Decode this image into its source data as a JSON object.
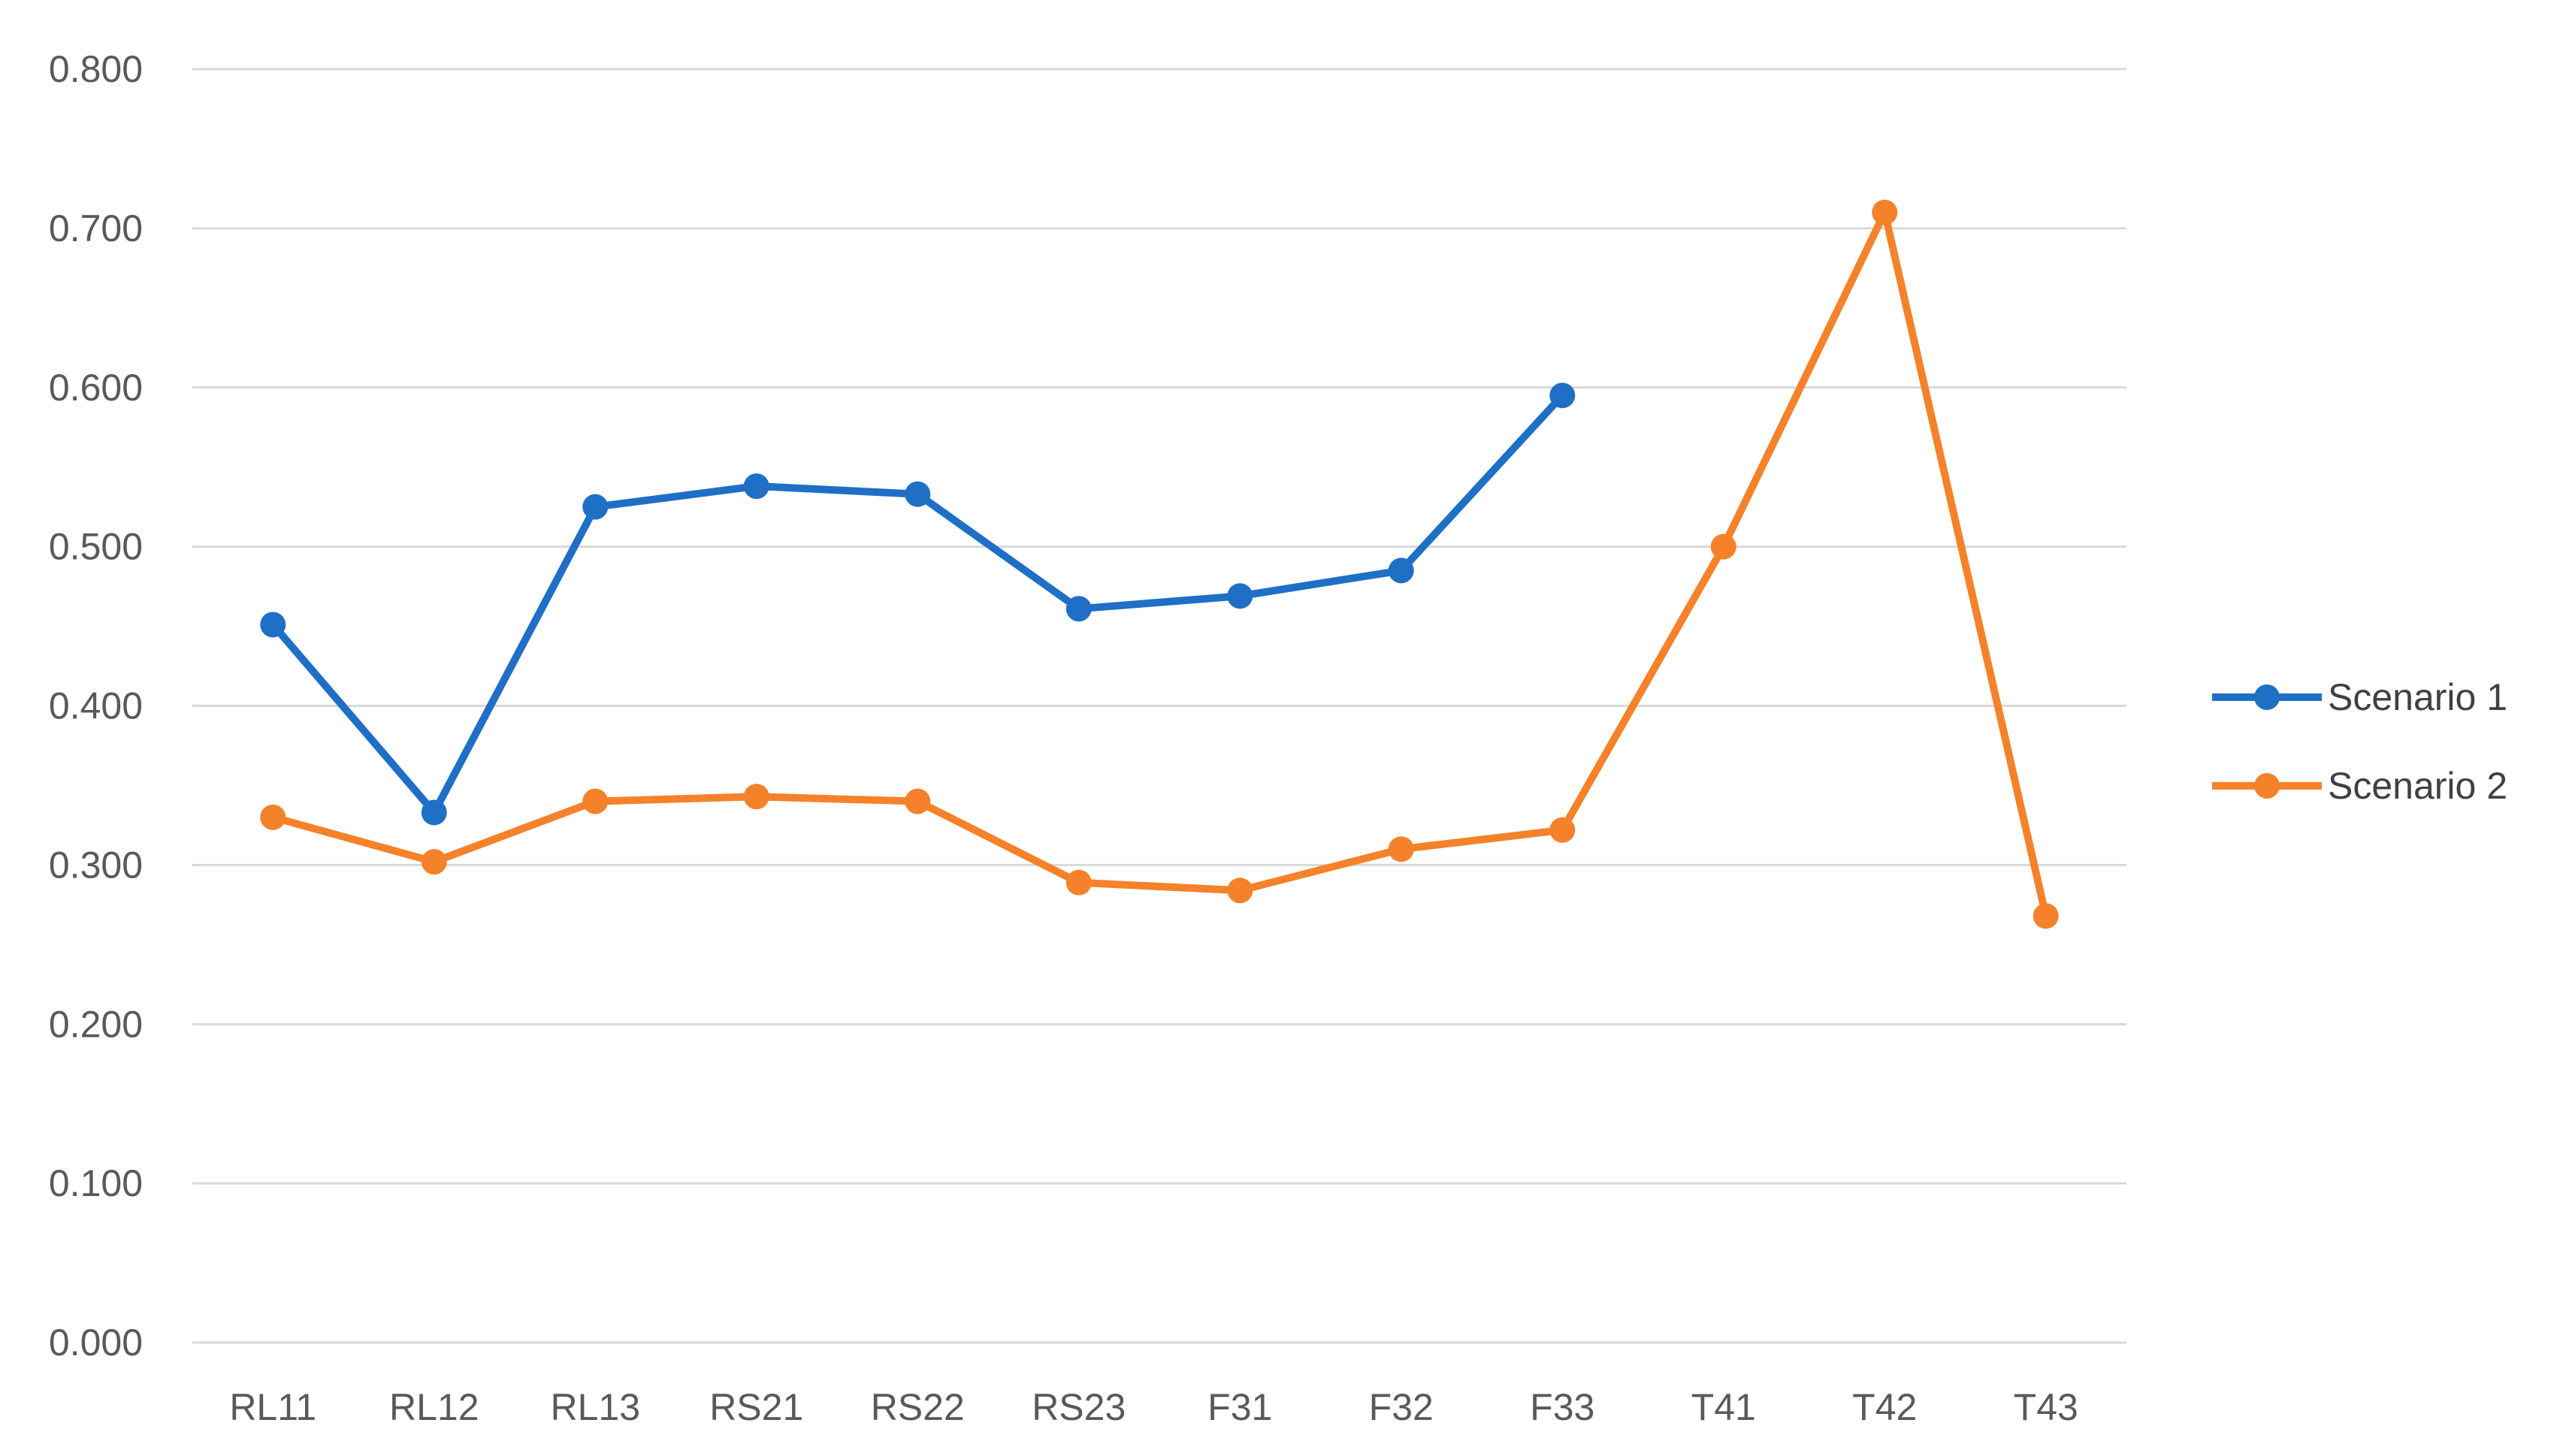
{
  "chart_data": {
    "type": "line",
    "title": "",
    "xlabel": "",
    "ylabel": "",
    "categories": [
      "RL11",
      "RL12",
      "RL13",
      "RS21",
      "RS22",
      "RS23",
      "F31",
      "F32",
      "F33",
      "T41",
      "T42",
      "T43"
    ],
    "ylim": [
      0,
      0.8
    ],
    "yticks": [
      "0.000",
      "0.100",
      "0.200",
      "0.300",
      "0.400",
      "0.500",
      "0.600",
      "0.700",
      "0.800"
    ],
    "grid": true,
    "legend_position": "right",
    "series": [
      {
        "name": "Scenario 1",
        "color": "#1f6fc6",
        "values": [
          0.451,
          0.333,
          0.525,
          0.538,
          0.533,
          0.461,
          0.469,
          0.485,
          0.595,
          null,
          null,
          null
        ]
      },
      {
        "name": "Scenario 2",
        "color": "#f5822a",
        "values": [
          0.33,
          0.302,
          0.34,
          0.343,
          0.34,
          0.289,
          0.284,
          0.31,
          0.322,
          0.5,
          0.71,
          0.268
        ]
      }
    ]
  }
}
